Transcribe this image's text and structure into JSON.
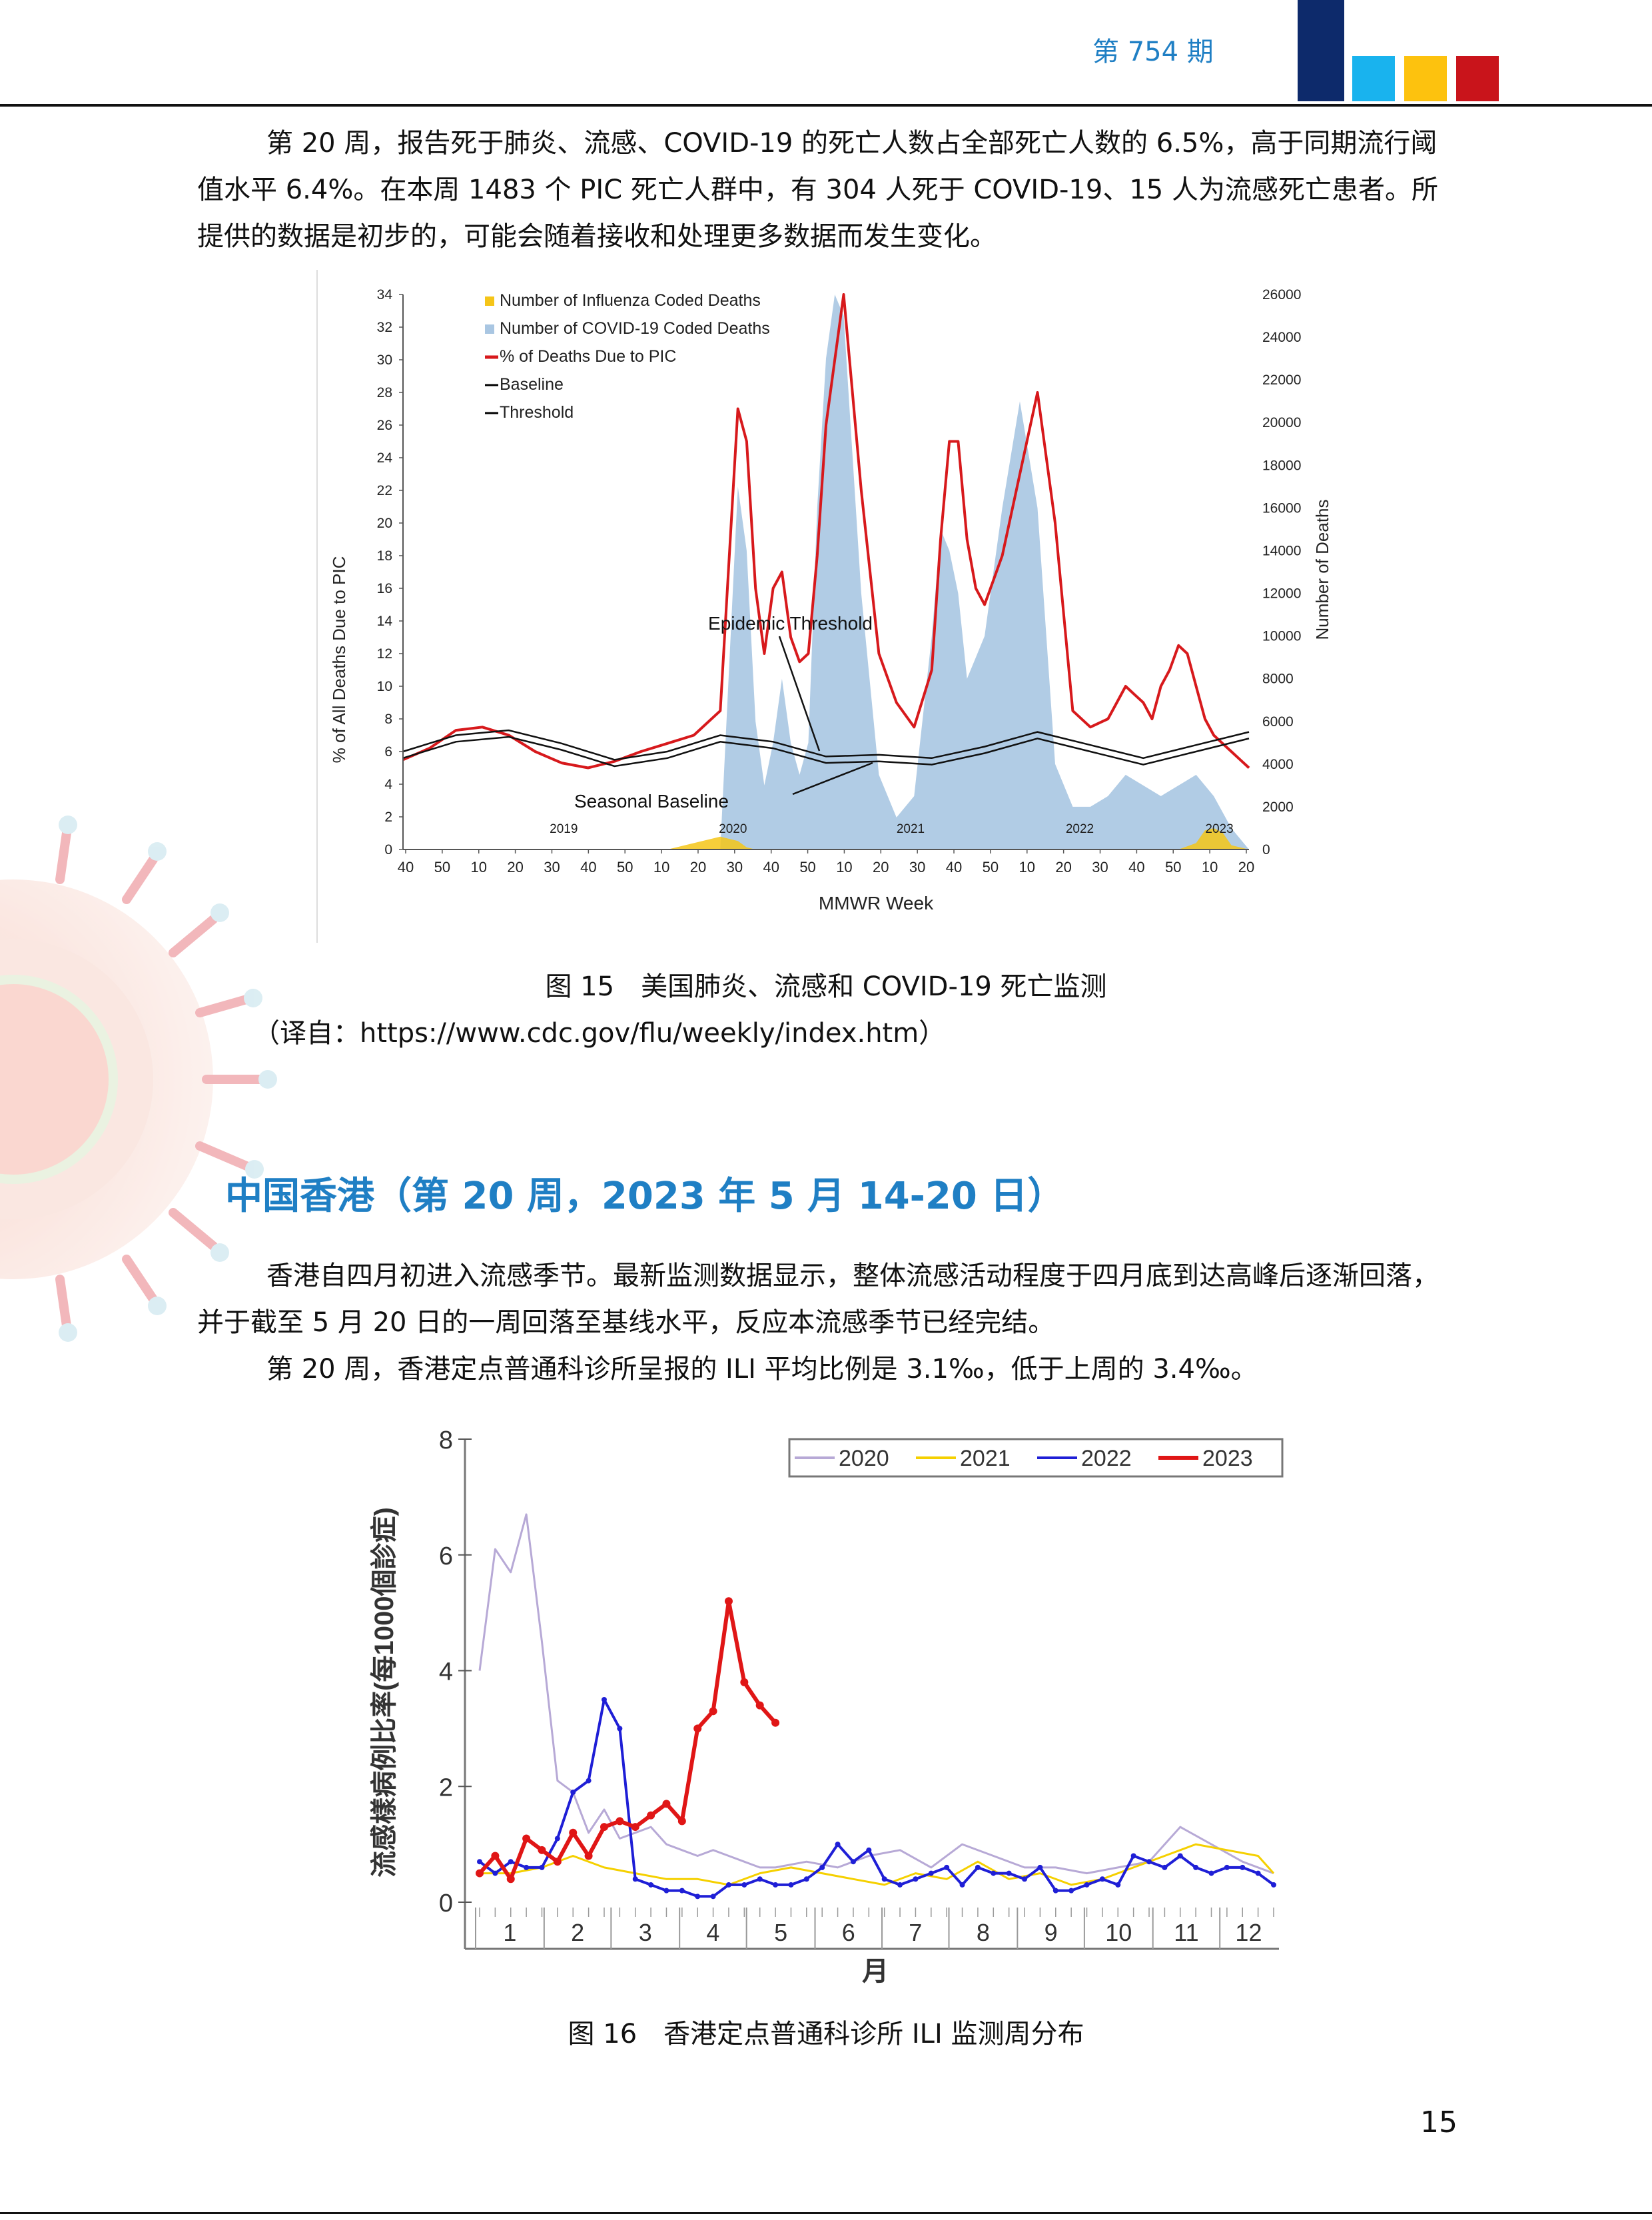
{
  "header": {
    "issue": "第 754 期",
    "colors": {
      "navy": "#0d2a6b",
      "cyan": "#19b3ee",
      "yellow": "#fdc20e",
      "red": "#c9141b",
      "title_blue": "#1f7fc4"
    }
  },
  "paragraphs": {
    "p1": "第 20 周，报告死于肺炎、流感、COVID-19 的死亡人数占全部死亡人数的 6.5%，高于同期流行阈值水平 6.4%。在本周 1483 个 PIC 死亡人群中，有 304 人死于 COVID-19、15 人为流感死亡患者。所提供的数据是初步的，可能会随着接收和处理更多数据而发生变化。",
    "p2": "香港自四月初进入流感季节。最新监测数据显示，整体流感活动程度于四月底到达高峰后逐渐回落，并于截至 5 月 20 日的一周回落至基线水平，反应本流感季节已经完结。",
    "p3": "第 20 周，香港定点普通科诊所呈报的 ILI 平均比例是 3.1‰，低于上周的 3.4‰。"
  },
  "figure15": {
    "caption": "图 15　美国肺炎、流感和 COVID-19 死亡监测",
    "source": "（译自：https://www.cdc.gov/flu/weekly/index.htm）"
  },
  "section_title": "中国香港（第 20 周，2023 年 5 月 14-20 日）",
  "figure16": {
    "caption": "图 16　香港定点普通科诊所 ILI 监测周分布"
  },
  "page_number": "15",
  "chart_data": [
    {
      "type": "area",
      "title": "",
      "xlabel": "MMWR Week",
      "ylabel": "% of All Deaths Due to PIC",
      "y2label": "Number of Deaths",
      "ylim": [
        0,
        34
      ],
      "y2lim": [
        0,
        26000
      ],
      "y_ticks": [
        "0",
        "2",
        "4",
        "6",
        "8",
        "10",
        "12",
        "14",
        "16",
        "18",
        "20",
        "22",
        "24",
        "26",
        "28",
        "30",
        "32",
        "34"
      ],
      "y2_ticks": [
        "0",
        "2000",
        "4000",
        "6000",
        "8000",
        "10000",
        "12000",
        "14000",
        "16000",
        "18000",
        "20000",
        "22000",
        "24000",
        "26000"
      ],
      "x_ticks": [
        "40",
        "50",
        "10",
        "20",
        "30",
        "40",
        "50",
        "10",
        "20",
        "30",
        "40",
        "50",
        "10",
        "20",
        "30",
        "40",
        "50",
        "10",
        "20",
        "30",
        "40",
        "50",
        "10",
        "20"
      ],
      "year_labels": [
        "2019",
        "2020",
        "2021",
        "2022",
        "2023"
      ],
      "legend": [
        {
          "name": "Number of Influenza Coded Deaths",
          "color": "#f5c518"
        },
        {
          "name": "Number of COVID-19 Coded Deaths",
          "color": "#a9c6e2"
        },
        {
          "name": "% of Deaths Due to PIC",
          "color": "#d7191c"
        },
        {
          "name": "Baseline",
          "color": "#000000"
        },
        {
          "name": "Threshold",
          "color": "#000000"
        }
      ],
      "annotations": [
        "Epidemic Threshold",
        "Seasonal Baseline"
      ],
      "x_index_range": [
        0,
        192
      ],
      "series": [
        {
          "name": "% of Deaths Due to PIC",
          "x": [
            0,
            6,
            12,
            18,
            24,
            30,
            36,
            42,
            48,
            54,
            60,
            66,
            72,
            76,
            78,
            80,
            82,
            84,
            86,
            88,
            90,
            92,
            94,
            96,
            98,
            100,
            104,
            108,
            112,
            116,
            120,
            122,
            124,
            126,
            128,
            130,
            132,
            136,
            140,
            144,
            148,
            152,
            156,
            160,
            162,
            164,
            166,
            168,
            170,
            172,
            174,
            176,
            178,
            180,
            182,
            184,
            186,
            188,
            190,
            192
          ],
          "y": [
            5.5,
            6.2,
            7.3,
            7.5,
            7.0,
            6.0,
            5.3,
            5.0,
            5.4,
            6.0,
            6.5,
            7.0,
            8.5,
            27,
            25,
            16,
            12,
            16,
            17,
            13,
            11.5,
            12,
            18,
            26,
            30,
            34,
            22,
            12,
            9.0,
            7.5,
            11,
            19,
            25,
            25,
            19,
            16,
            15,
            18,
            23,
            28,
            20,
            8.5,
            7.5,
            8,
            9,
            10,
            9.5,
            9,
            8,
            10,
            11,
            12.5,
            12,
            10,
            8,
            7.0,
            6.5,
            6.0,
            5.5,
            5.0
          ]
        },
        {
          "name": "Number of COVID-19 Coded Deaths",
          "x": [
            0,
            72,
            76,
            78,
            80,
            82,
            84,
            86,
            88,
            90,
            92,
            94,
            96,
            98,
            100,
            104,
            108,
            112,
            116,
            120,
            122,
            124,
            126,
            128,
            130,
            132,
            136,
            140,
            144,
            148,
            152,
            156,
            160,
            164,
            168,
            172,
            176,
            180,
            184,
            188,
            192
          ],
          "y": [
            0,
            0,
            17000,
            14000,
            6000,
            3000,
            5000,
            8000,
            5000,
            3500,
            5000,
            16000,
            23000,
            26000,
            25000,
            12000,
            3500,
            1500,
            2500,
            10000,
            15000,
            14000,
            12000,
            8000,
            9000,
            10000,
            16000,
            21000,
            16000,
            4000,
            2000,
            2000,
            2500,
            3500,
            3000,
            2500,
            3000,
            3500,
            2500,
            1000,
            0
          ]
        },
        {
          "name": "Number of Influenza Coded Deaths",
          "x": [
            0,
            60,
            66,
            72,
            76,
            78,
            80,
            176,
            180,
            182,
            184,
            186,
            188,
            192
          ],
          "y": [
            0,
            0,
            300,
            600,
            400,
            100,
            0,
            0,
            300,
            900,
            1000,
            800,
            200,
            0
          ]
        },
        {
          "name": "Baseline",
          "x": [
            0,
            12,
            24,
            36,
            48,
            60,
            72,
            84,
            96,
            108,
            120,
            132,
            144,
            156,
            168,
            180,
            192
          ],
          "y": [
            5.6,
            6.6,
            6.9,
            6.1,
            5.1,
            5.6,
            6.6,
            6.2,
            5.3,
            5.4,
            5.2,
            5.9,
            6.8,
            6.0,
            5.2,
            6.0,
            6.8
          ]
        },
        {
          "name": "Threshold",
          "x": [
            0,
            12,
            24,
            36,
            48,
            60,
            72,
            84,
            96,
            108,
            120,
            132,
            144,
            156,
            168,
            180,
            192
          ],
          "y": [
            6.0,
            7.0,
            7.3,
            6.5,
            5.5,
            6.0,
            7.0,
            6.6,
            5.7,
            5.8,
            5.6,
            6.3,
            7.2,
            6.4,
            5.6,
            6.4,
            7.2
          ]
        }
      ]
    },
    {
      "type": "line",
      "title": "",
      "xlabel": "月",
      "ylabel": "流感樣病例比率(每1000個診症)",
      "ylim": [
        0,
        8
      ],
      "y_ticks": [
        "0",
        "2",
        "4",
        "6",
        "8"
      ],
      "categories": [
        "1",
        "2",
        "3",
        "4",
        "5",
        "6",
        "7",
        "8",
        "9",
        "10",
        "11",
        "12"
      ],
      "week_range": [
        1,
        52
      ],
      "series": [
        {
          "name": "2020",
          "color": "#b7a9d6",
          "x": [
            1,
            2,
            3,
            4,
            5,
            6,
            7,
            8,
            9,
            10,
            11,
            12,
            13,
            14,
            15,
            16,
            17,
            18,
            19,
            20,
            22,
            24,
            26,
            28,
            30,
            32,
            34,
            36,
            38,
            40,
            42,
            44,
            46,
            48,
            50,
            52
          ],
          "y": [
            4.0,
            6.1,
            5.7,
            6.7,
            4.5,
            2.1,
            1.9,
            1.2,
            1.6,
            1.1,
            1.2,
            1.3,
            1.0,
            0.9,
            0.8,
            0.9,
            0.8,
            0.7,
            0.6,
            0.6,
            0.7,
            0.6,
            0.8,
            0.9,
            0.6,
            1.0,
            0.8,
            0.6,
            0.6,
            0.5,
            0.6,
            0.7,
            1.3,
            1.0,
            0.7,
            0.5
          ]
        },
        {
          "name": "2021",
          "color": "#f5d000",
          "x": [
            1,
            3,
            5,
            7,
            9,
            11,
            13,
            15,
            17,
            19,
            21,
            23,
            25,
            27,
            29,
            31,
            33,
            35,
            37,
            39,
            41,
            43,
            45,
            47,
            49,
            51,
            52
          ],
          "y": [
            0.5,
            0.5,
            0.6,
            0.8,
            0.6,
            0.5,
            0.4,
            0.4,
            0.3,
            0.5,
            0.6,
            0.5,
            0.4,
            0.3,
            0.5,
            0.4,
            0.7,
            0.4,
            0.5,
            0.3,
            0.4,
            0.6,
            0.8,
            1.0,
            0.9,
            0.8,
            0.5
          ]
        },
        {
          "name": "2022",
          "color": "#1f1fd6",
          "x": [
            1,
            2,
            3,
            4,
            5,
            6,
            7,
            8,
            9,
            10,
            11,
            12,
            13,
            14,
            15,
            16,
            17,
            18,
            19,
            20,
            21,
            22,
            23,
            24,
            25,
            26,
            27,
            28,
            29,
            30,
            31,
            32,
            33,
            34,
            35,
            36,
            37,
            38,
            39,
            40,
            41,
            42,
            43,
            44,
            45,
            46,
            47,
            48,
            49,
            50,
            51,
            52
          ],
          "y": [
            0.7,
            0.5,
            0.7,
            0.6,
            0.6,
            1.1,
            1.9,
            2.1,
            3.5,
            3.0,
            0.4,
            0.3,
            0.2,
            0.2,
            0.1,
            0.1,
            0.3,
            0.3,
            0.4,
            0.3,
            0.3,
            0.4,
            0.6,
            1.0,
            0.7,
            0.9,
            0.4,
            0.3,
            0.4,
            0.5,
            0.6,
            0.3,
            0.6,
            0.5,
            0.5,
            0.4,
            0.6,
            0.2,
            0.2,
            0.3,
            0.4,
            0.3,
            0.8,
            0.7,
            0.6,
            0.8,
            0.6,
            0.5,
            0.6,
            0.6,
            0.5,
            0.3
          ]
        },
        {
          "name": "2023",
          "color": "#e01616",
          "x": [
            1,
            2,
            3,
            4,
            5,
            6,
            7,
            8,
            9,
            10,
            11,
            12,
            13,
            14,
            15,
            16,
            17,
            18,
            19,
            20
          ],
          "y": [
            0.5,
            0.8,
            0.4,
            1.1,
            0.9,
            0.7,
            1.2,
            0.8,
            1.3,
            1.4,
            1.3,
            1.5,
            1.7,
            1.4,
            3.0,
            3.3,
            5.2,
            3.8,
            3.4,
            3.1
          ]
        }
      ]
    }
  ]
}
